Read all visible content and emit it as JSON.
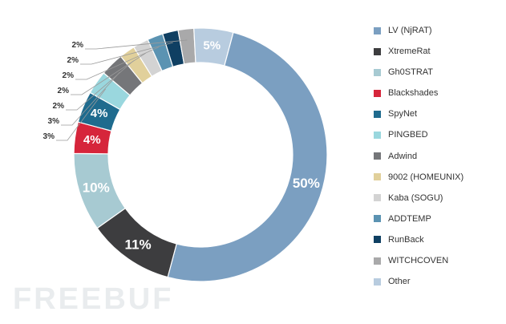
{
  "chart_data": {
    "type": "pie",
    "title": "",
    "donut": true,
    "legend_position": "right",
    "slices": [
      {
        "name": "LV (NjRAT)",
        "value": 50,
        "label": "50%",
        "color": "#7b9fc1",
        "outer": false
      },
      {
        "name": "XtremeRat",
        "value": 11,
        "label": "11%",
        "color": "#3d3d3f",
        "outer": false
      },
      {
        "name": "Gh0STRAT",
        "value": 10,
        "label": "10%",
        "color": "#a7cad2",
        "outer": false
      },
      {
        "name": "Blackshades",
        "value": 4,
        "label": "4%",
        "color": "#d6253b",
        "outer": false
      },
      {
        "name": "SpyNet",
        "value": 4,
        "label": "4%",
        "color": "#1f6b8e",
        "outer": false
      },
      {
        "name": "PINGBED",
        "value": 3,
        "label": "3%",
        "color": "#9ad7de",
        "outer": true
      },
      {
        "name": "Adwind",
        "value": 3,
        "label": "3%",
        "color": "#757679",
        "outer": true
      },
      {
        "name": "9002 (HOMEUNIX)",
        "value": 2,
        "label": "2%",
        "color": "#e1d09b",
        "outer": true
      },
      {
        "name": "Kaba (SOGU)",
        "value": 2,
        "label": "2%",
        "color": "#d3d3d3",
        "outer": true
      },
      {
        "name": "ADDTEMP",
        "value": 2,
        "label": "2%",
        "color": "#5b93b2",
        "outer": true
      },
      {
        "name": "RunBack",
        "value": 2,
        "label": "2%",
        "color": "#0f3f62",
        "outer": true
      },
      {
        "name": "WITCHCOVEN",
        "value": 2,
        "label": "2%",
        "color": "#a9a9aa",
        "outer": true
      },
      {
        "name": "Other",
        "value": 5,
        "label": "5%",
        "color": "#b8ccdf",
        "outer": false
      }
    ]
  },
  "watermark": "FREEBUF"
}
